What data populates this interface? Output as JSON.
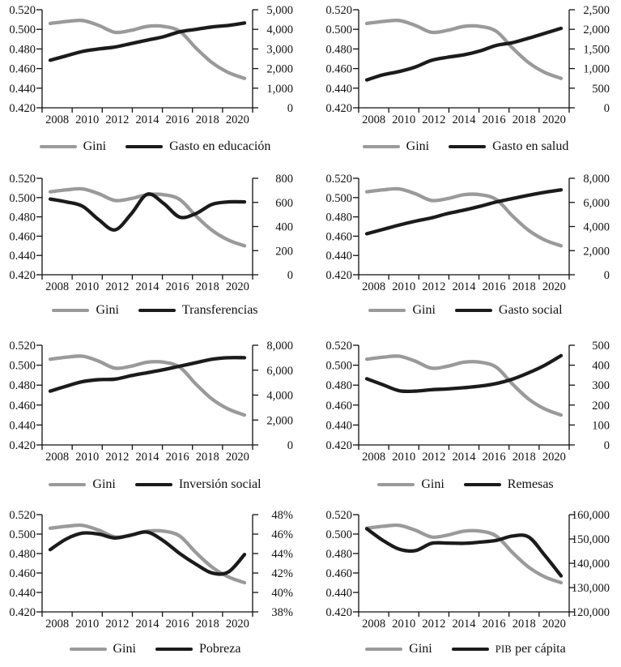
{
  "page": {
    "background": "#ffffff"
  },
  "colors": {
    "gini_line": "#9a9a9a",
    "variable_line": "#1b1b1b",
    "axis": "#111111",
    "text": "#111111"
  },
  "chart_data": {
    "type": "line",
    "layout": "4 rows x 2 columns of small multiples, each with dual y-axes, no gridlines, legend below each plot",
    "x": [
      2008,
      2009,
      2010,
      2011,
      2012,
      2013,
      2014,
      2015,
      2016,
      2017,
      2018,
      2019,
      2020
    ],
    "x_tick_labels": [
      "2008",
      "2010",
      "2012",
      "2014",
      "2016",
      "2018",
      "2020"
    ],
    "left_axis": {
      "series": "Gini",
      "min": 0.42,
      "max": 0.52,
      "step": 0.02,
      "tick_labels": [
        "0.420",
        "0.440",
        "0.460",
        "0.480",
        "0.500",
        "0.520"
      ]
    },
    "gini": {
      "name": "Gini",
      "values": [
        0.506,
        0.508,
        0.509,
        0.504,
        0.497,
        0.499,
        0.503,
        0.503,
        0.498,
        0.481,
        0.466,
        0.456,
        0.45
      ]
    },
    "charts": [
      {
        "name": "Gasto en educación",
        "legend": [
          "Gini",
          "Gasto en educación"
        ],
        "right_axis": {
          "min": 0,
          "max": 5000,
          "step": 1000,
          "tick_labels": [
            "0",
            "1,000",
            "2,000",
            "3,000",
            "4,000",
            "5,000"
          ]
        },
        "values": [
          2425,
          2650,
          2875,
          3000,
          3100,
          3275,
          3450,
          3625,
          3875,
          4000,
          4125,
          4200,
          4325
        ]
      },
      {
        "name": "Gasto en salud",
        "legend": [
          "Gini",
          "Gasto en salud"
        ],
        "right_axis": {
          "min": 0,
          "max": 2500,
          "step": 500,
          "tick_labels": [
            "0",
            "500",
            "1,000",
            "1,500",
            "2,000",
            "2,500"
          ]
        },
        "values": [
          710,
          840,
          925,
          1040,
          1210,
          1290,
          1350,
          1450,
          1590,
          1660,
          1775,
          1900,
          2025
        ]
      },
      {
        "name": "Transferencias",
        "legend": [
          "Gini",
          "Transferencias"
        ],
        "right_axis": {
          "min": 0,
          "max": 800,
          "step": 200,
          "tick_labels": [
            "0",
            "200",
            "400",
            "600",
            "800"
          ]
        },
        "values": [
          628,
          604,
          568,
          456,
          372,
          504,
          668,
          592,
          478,
          508,
          584,
          604,
          604
        ]
      },
      {
        "name": "Gasto social",
        "legend": [
          "Gini",
          "Gasto social"
        ],
        "right_axis": {
          "min": 0,
          "max": 8000,
          "step": 2000,
          "tick_labels": [
            "0",
            "2,000",
            "4,000",
            "6,000",
            "8,000"
          ]
        },
        "values": [
          3400,
          3760,
          4120,
          4440,
          4720,
          5080,
          5360,
          5680,
          6040,
          6320,
          6600,
          6840,
          7040
        ]
      },
      {
        "name": "Inversión social",
        "legend": [
          "Gini",
          "Inversión social"
        ],
        "right_axis": {
          "min": 0,
          "max": 8000,
          "step": 2000,
          "tick_labels": [
            "0",
            "2,000",
            "4,000",
            "6,000",
            "8,000"
          ]
        },
        "values": [
          4320,
          4720,
          5080,
          5240,
          5280,
          5560,
          5800,
          6040,
          6320,
          6600,
          6880,
          7000,
          7000
        ]
      },
      {
        "name": "Remesas",
        "legend": [
          "Gini",
          "Remesas"
        ],
        "right_axis": {
          "min": 0,
          "max": 500,
          "step": 100,
          "tick_labels": [
            "0",
            "100",
            "200",
            "300",
            "400",
            "500"
          ]
        },
        "values": [
          332,
          302,
          272,
          270,
          277,
          281,
          287,
          295,
          308,
          330,
          362,
          400,
          448
        ]
      },
      {
        "name": "Pobreza",
        "legend": [
          "Gini",
          "Pobreza"
        ],
        "right_axis": {
          "min": 38,
          "max": 48,
          "step": 2,
          "tick_labels": [
            "38%",
            "40%",
            "42%",
            "44%",
            "46%",
            "48%"
          ]
        },
        "values": [
          44.4,
          45.5,
          46.1,
          46.0,
          45.6,
          45.9,
          46.2,
          45.3,
          44.0,
          42.9,
          42.0,
          42.1,
          43.9
        ]
      },
      {
        "name": "PIB per cápita",
        "legend": [
          "Gini",
          "PIB per cápita"
        ],
        "small_caps_first": true,
        "right_axis": {
          "min": 120000,
          "max": 160000,
          "step": 10000,
          "tick_labels": [
            "120,000",
            "130,000",
            "140,000",
            "150,000",
            "160,000"
          ]
        },
        "values": [
          154200,
          149400,
          145800,
          145200,
          148200,
          148300,
          148200,
          148700,
          149400,
          151200,
          150800,
          143200,
          134800
        ]
      }
    ]
  }
}
